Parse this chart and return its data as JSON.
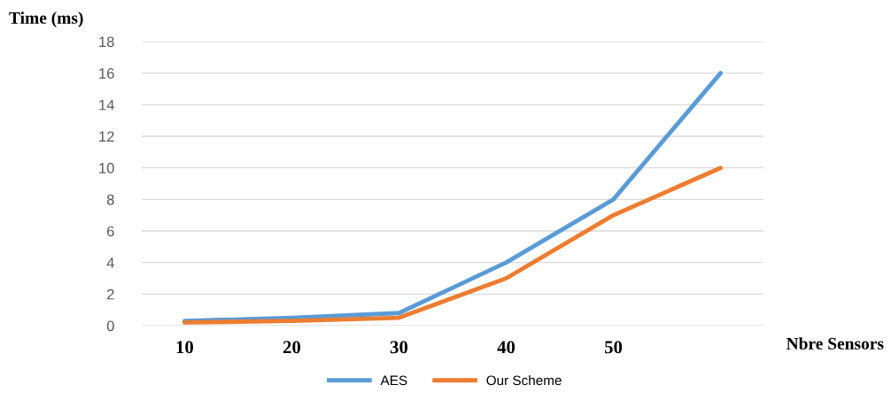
{
  "chart_data": {
    "type": "line",
    "ylabel": "Time (ms)",
    "xlabel": "Nbre Sensors",
    "categories": [
      "10",
      "20",
      "30",
      "40",
      "50",
      null
    ],
    "series": [
      {
        "name": "AES",
        "color": "#5b9bd5",
        "values": [
          0.3,
          0.5,
          0.8,
          4,
          8,
          16
        ]
      },
      {
        "name": "Our Scheme",
        "color": "#ed7d31",
        "values": [
          0.2,
          0.3,
          0.5,
          3,
          7,
          10
        ]
      }
    ],
    "ylim": [
      0,
      18
    ],
    "yticks": [
      0,
      2,
      4,
      6,
      8,
      10,
      12,
      14,
      16,
      18
    ],
    "grid": "y",
    "legend": "bottom",
    "marker": "none",
    "line_style": "solid"
  }
}
